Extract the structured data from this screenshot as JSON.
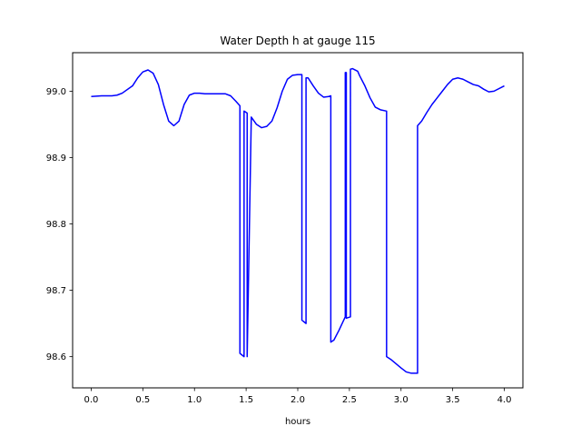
{
  "chart_data": {
    "type": "line",
    "title": "Water Depth h at gauge 115",
    "xlabel": "hours",
    "ylabel": "",
    "xlim": [
      -0.18,
      4.18
    ],
    "ylim": [
      98.553,
      99.058
    ],
    "xticks": [
      0.0,
      0.5,
      1.0,
      1.5,
      2.0,
      2.5,
      3.0,
      3.5,
      4.0
    ],
    "xtick_labels": [
      "0.0",
      "0.5",
      "1.0",
      "1.5",
      "2.0",
      "2.5",
      "3.0",
      "3.5",
      "4.0"
    ],
    "yticks": [
      98.6,
      98.7,
      98.8,
      98.9,
      99.0
    ],
    "ytick_labels": [
      "98.6",
      "98.7",
      "98.8",
      "98.9",
      "99.0"
    ],
    "grid": false,
    "series": [
      {
        "color": "#0000ff",
        "x": [
          0.0,
          0.1,
          0.2,
          0.25,
          0.3,
          0.4,
          0.45,
          0.5,
          0.55,
          0.6,
          0.65,
          0.7,
          0.75,
          0.8,
          0.85,
          0.9,
          0.95,
          1.0,
          1.05,
          1.1,
          1.2,
          1.3,
          1.35,
          1.4,
          1.44,
          1.44,
          1.48,
          1.48,
          1.51,
          1.51,
          1.55,
          1.6,
          1.65,
          1.7,
          1.75,
          1.8,
          1.85,
          1.9,
          1.95,
          2.0,
          2.04,
          2.04,
          2.08,
          2.08,
          2.1,
          2.15,
          2.2,
          2.25,
          2.3,
          2.32,
          2.32,
          2.35,
          2.4,
          2.46,
          2.46,
          2.47,
          2.47,
          2.51,
          2.51,
          2.53,
          2.58,
          2.6,
          2.65,
          2.7,
          2.75,
          2.8,
          2.86,
          2.86,
          2.9,
          3.0,
          3.05,
          3.1,
          3.16,
          3.16,
          3.2,
          3.25,
          3.3,
          3.35,
          3.4,
          3.45,
          3.5,
          3.55,
          3.6,
          3.65,
          3.7,
          3.75,
          3.8,
          3.85,
          3.9,
          4.0
        ],
        "y": [
          98.992,
          98.993,
          98.993,
          98.994,
          98.997,
          99.008,
          99.02,
          99.029,
          99.032,
          99.027,
          99.01,
          98.98,
          98.955,
          98.948,
          98.955,
          98.98,
          98.994,
          98.997,
          98.997,
          98.996,
          98.996,
          98.996,
          98.993,
          98.985,
          98.978,
          98.605,
          98.6,
          98.97,
          98.967,
          98.6,
          98.961,
          98.95,
          98.945,
          98.947,
          98.955,
          98.975,
          99.0,
          99.018,
          99.024,
          99.025,
          99.025,
          98.655,
          98.65,
          99.02,
          99.02,
          99.008,
          98.997,
          98.991,
          98.992,
          98.993,
          98.622,
          98.625,
          98.64,
          98.66,
          99.028,
          99.028,
          98.658,
          98.66,
          99.033,
          99.034,
          99.03,
          99.023,
          99.008,
          98.99,
          98.976,
          98.972,
          98.97,
          98.6,
          98.596,
          98.583,
          98.577,
          98.575,
          98.575,
          98.948,
          98.955,
          98.968,
          98.98,
          98.99,
          99.0,
          99.01,
          99.018,
          99.02,
          99.018,
          99.014,
          99.01,
          99.008,
          99.003,
          98.999,
          99.0,
          99.008
        ]
      }
    ]
  }
}
